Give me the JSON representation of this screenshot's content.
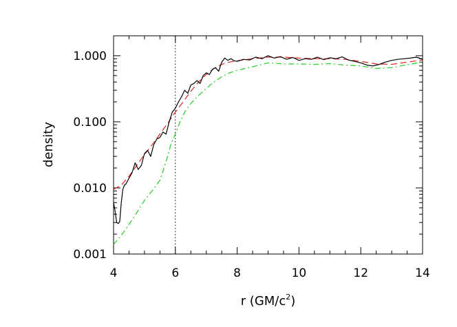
{
  "chart_data": {
    "type": "line",
    "title": "",
    "xlabel": {
      "main": "r (GM/c",
      "sup": "2",
      "close": ")"
    },
    "ylabel": "density",
    "xlim": [
      4,
      14
    ],
    "ylim": [
      0.001,
      2.0
    ],
    "yscale": "log",
    "x_ticks": [
      4,
      6,
      8,
      10,
      12,
      14
    ],
    "x_tick_labels": [
      "4",
      "6",
      "8",
      "10",
      "12",
      "14"
    ],
    "y_ticks": [
      0.001,
      0.01,
      0.1,
      1.0
    ],
    "y_tick_labels": [
      "0.001",
      "0.010",
      "0.100",
      "1.000"
    ],
    "vline": {
      "x": 6,
      "style": "dotted",
      "color": "#000000"
    },
    "grid": false,
    "legend": "none",
    "series": [
      {
        "color": "#000000",
        "style": "solid",
        "x": [
          4.0,
          4.05,
          4.1,
          4.15,
          4.2,
          4.25,
          4.3,
          4.35,
          4.4,
          4.5,
          4.6,
          4.7,
          4.8,
          4.9,
          5.0,
          5.1,
          5.2,
          5.3,
          5.4,
          5.5,
          5.6,
          5.7,
          5.8,
          5.9,
          6.0,
          6.1,
          6.2,
          6.3,
          6.4,
          6.5,
          6.6,
          6.7,
          6.8,
          6.9,
          7.0,
          7.1,
          7.2,
          7.3,
          7.4,
          7.5,
          7.6,
          7.7,
          7.8,
          7.9,
          8.0,
          8.2,
          8.4,
          8.6,
          8.8,
          9.0,
          9.2,
          9.4,
          9.6,
          9.8,
          10.0,
          10.2,
          10.4,
          10.6,
          10.8,
          11.0,
          11.2,
          11.4,
          11.6,
          11.8,
          12.0,
          12.2,
          12.4,
          12.6,
          12.8,
          13.0,
          13.2,
          13.4,
          13.6,
          13.8,
          14.0
        ],
        "y": [
          0.006,
          0.0045,
          0.003,
          0.0029,
          0.0031,
          0.006,
          0.0095,
          0.011,
          0.0115,
          0.014,
          0.017,
          0.024,
          0.019,
          0.022,
          0.033,
          0.037,
          0.03,
          0.045,
          0.055,
          0.058,
          0.07,
          0.065,
          0.1,
          0.14,
          0.16,
          0.2,
          0.24,
          0.3,
          0.27,
          0.36,
          0.38,
          0.42,
          0.38,
          0.5,
          0.55,
          0.52,
          0.62,
          0.66,
          0.58,
          0.8,
          0.92,
          0.85,
          0.9,
          0.84,
          0.82,
          0.88,
          0.86,
          0.95,
          0.9,
          1.0,
          0.92,
          0.97,
          0.88,
          0.94,
          0.85,
          0.9,
          0.88,
          0.95,
          0.87,
          0.93,
          0.9,
          0.96,
          0.86,
          0.82,
          0.78,
          0.72,
          0.7,
          0.74,
          0.8,
          0.85,
          0.88,
          0.9,
          0.92,
          0.95,
          0.88
        ]
      },
      {
        "color": "#dd2222",
        "style": "dashed",
        "x": [
          4.0,
          4.25,
          4.5,
          4.75,
          5.0,
          5.25,
          5.5,
          5.75,
          6.0,
          6.25,
          6.5,
          6.75,
          7.0,
          7.25,
          7.5,
          7.75,
          8.0,
          8.5,
          9.0,
          9.5,
          10.0,
          10.5,
          11.0,
          11.5,
          12.0,
          12.5,
          13.0,
          13.5,
          14.0
        ],
        "y": [
          0.0095,
          0.011,
          0.015,
          0.022,
          0.032,
          0.045,
          0.065,
          0.095,
          0.14,
          0.2,
          0.29,
          0.4,
          0.52,
          0.64,
          0.74,
          0.8,
          0.84,
          0.9,
          0.95,
          0.95,
          0.92,
          0.9,
          0.9,
          0.88,
          0.82,
          0.75,
          0.74,
          0.8,
          0.86
        ]
      },
      {
        "color": "#22cc22",
        "style": "dash-dot",
        "x": [
          4.0,
          4.25,
          4.5,
          4.75,
          5.0,
          5.25,
          5.5,
          5.6,
          5.75,
          5.85,
          6.0,
          6.15,
          6.3,
          6.5,
          6.75,
          7.0,
          7.25,
          7.5,
          7.75,
          8.0,
          8.5,
          9.0,
          9.5,
          10.0,
          10.5,
          11.0,
          11.5,
          12.0,
          12.5,
          13.0,
          13.5,
          14.0
        ],
        "y": [
          0.0014,
          0.0019,
          0.0028,
          0.0042,
          0.0065,
          0.009,
          0.013,
          0.018,
          0.03,
          0.045,
          0.065,
          0.1,
          0.14,
          0.19,
          0.25,
          0.32,
          0.4,
          0.48,
          0.55,
          0.6,
          0.68,
          0.78,
          0.75,
          0.75,
          0.74,
          0.76,
          0.72,
          0.7,
          0.64,
          0.66,
          0.73,
          0.8
        ]
      }
    ]
  }
}
